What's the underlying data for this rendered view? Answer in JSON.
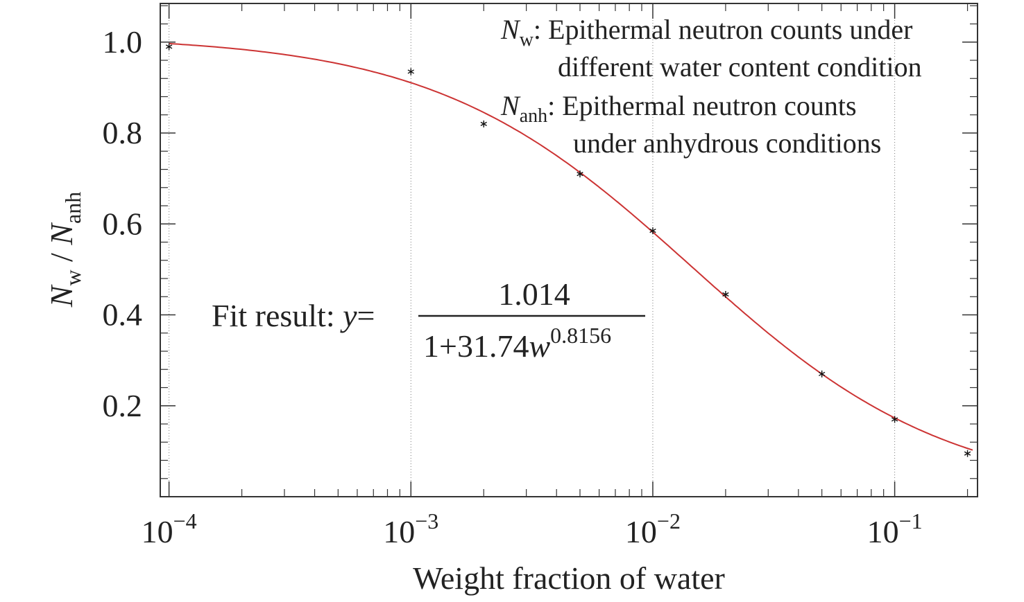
{
  "chart_data": {
    "type": "scatter",
    "xlabel": "Weight fraction of water",
    "ylabel": {
      "parts": [
        {
          "text": "N",
          "style": "italic"
        },
        {
          "text": "w",
          "style": "sub"
        },
        {
          "text": " / ",
          "style": "normal"
        },
        {
          "text": "N",
          "style": "italic"
        },
        {
          "text": "anh",
          "style": "sub"
        }
      ]
    },
    "x_scale": "log",
    "xlim": [
      9.2e-05,
      0.22
    ],
    "ylim": [
      0.0,
      1.085
    ],
    "x_ticks": [
      {
        "value": 0.0001,
        "base": "10",
        "exp": "−4"
      },
      {
        "value": 0.001,
        "base": "10",
        "exp": "−3"
      },
      {
        "value": 0.01,
        "base": "10",
        "exp": "−2"
      },
      {
        "value": 0.1,
        "base": "10",
        "exp": "−1"
      }
    ],
    "y_ticks": [
      {
        "value": 0.2,
        "label": "0.2"
      },
      {
        "value": 0.4,
        "label": "0.4"
      },
      {
        "value": 0.6,
        "label": "0.6"
      },
      {
        "value": 0.8,
        "label": "0.8"
      },
      {
        "value": 1.0,
        "label": "1.0"
      }
    ],
    "grid": {
      "x_major": true,
      "y": false,
      "style": "dotted"
    },
    "series": [
      {
        "marker": "asterisk",
        "color": "#111111",
        "x": [
          0.0001,
          0.001,
          0.002,
          0.005,
          0.01,
          0.02,
          0.05,
          0.1,
          0.2
        ],
        "y": [
          0.99,
          0.935,
          0.82,
          0.71,
          0.585,
          0.445,
          0.27,
          0.17,
          0.095
        ]
      }
    ],
    "fit": {
      "color": "#cc3333",
      "numerator": 1.014,
      "a": 31.74,
      "b": 0.8156,
      "label_prefix": "Fit result: ",
      "label_var": "y",
      "label_eq": "=",
      "label_num": "1.014",
      "label_den": "1+31.74",
      "label_den_var": "w",
      "label_den_exp": "0.8156"
    },
    "legend": {
      "placement": "top-right",
      "entries": [
        {
          "sym": "N",
          "sub": "w",
          "line1": ": Epithermal neutron counts under",
          "line2": "different water content condition"
        },
        {
          "sym": "N",
          "sub": "anh",
          "line1": ": Epithermal neutron counts",
          "line2": "under anhydrous conditions"
        }
      ]
    }
  }
}
